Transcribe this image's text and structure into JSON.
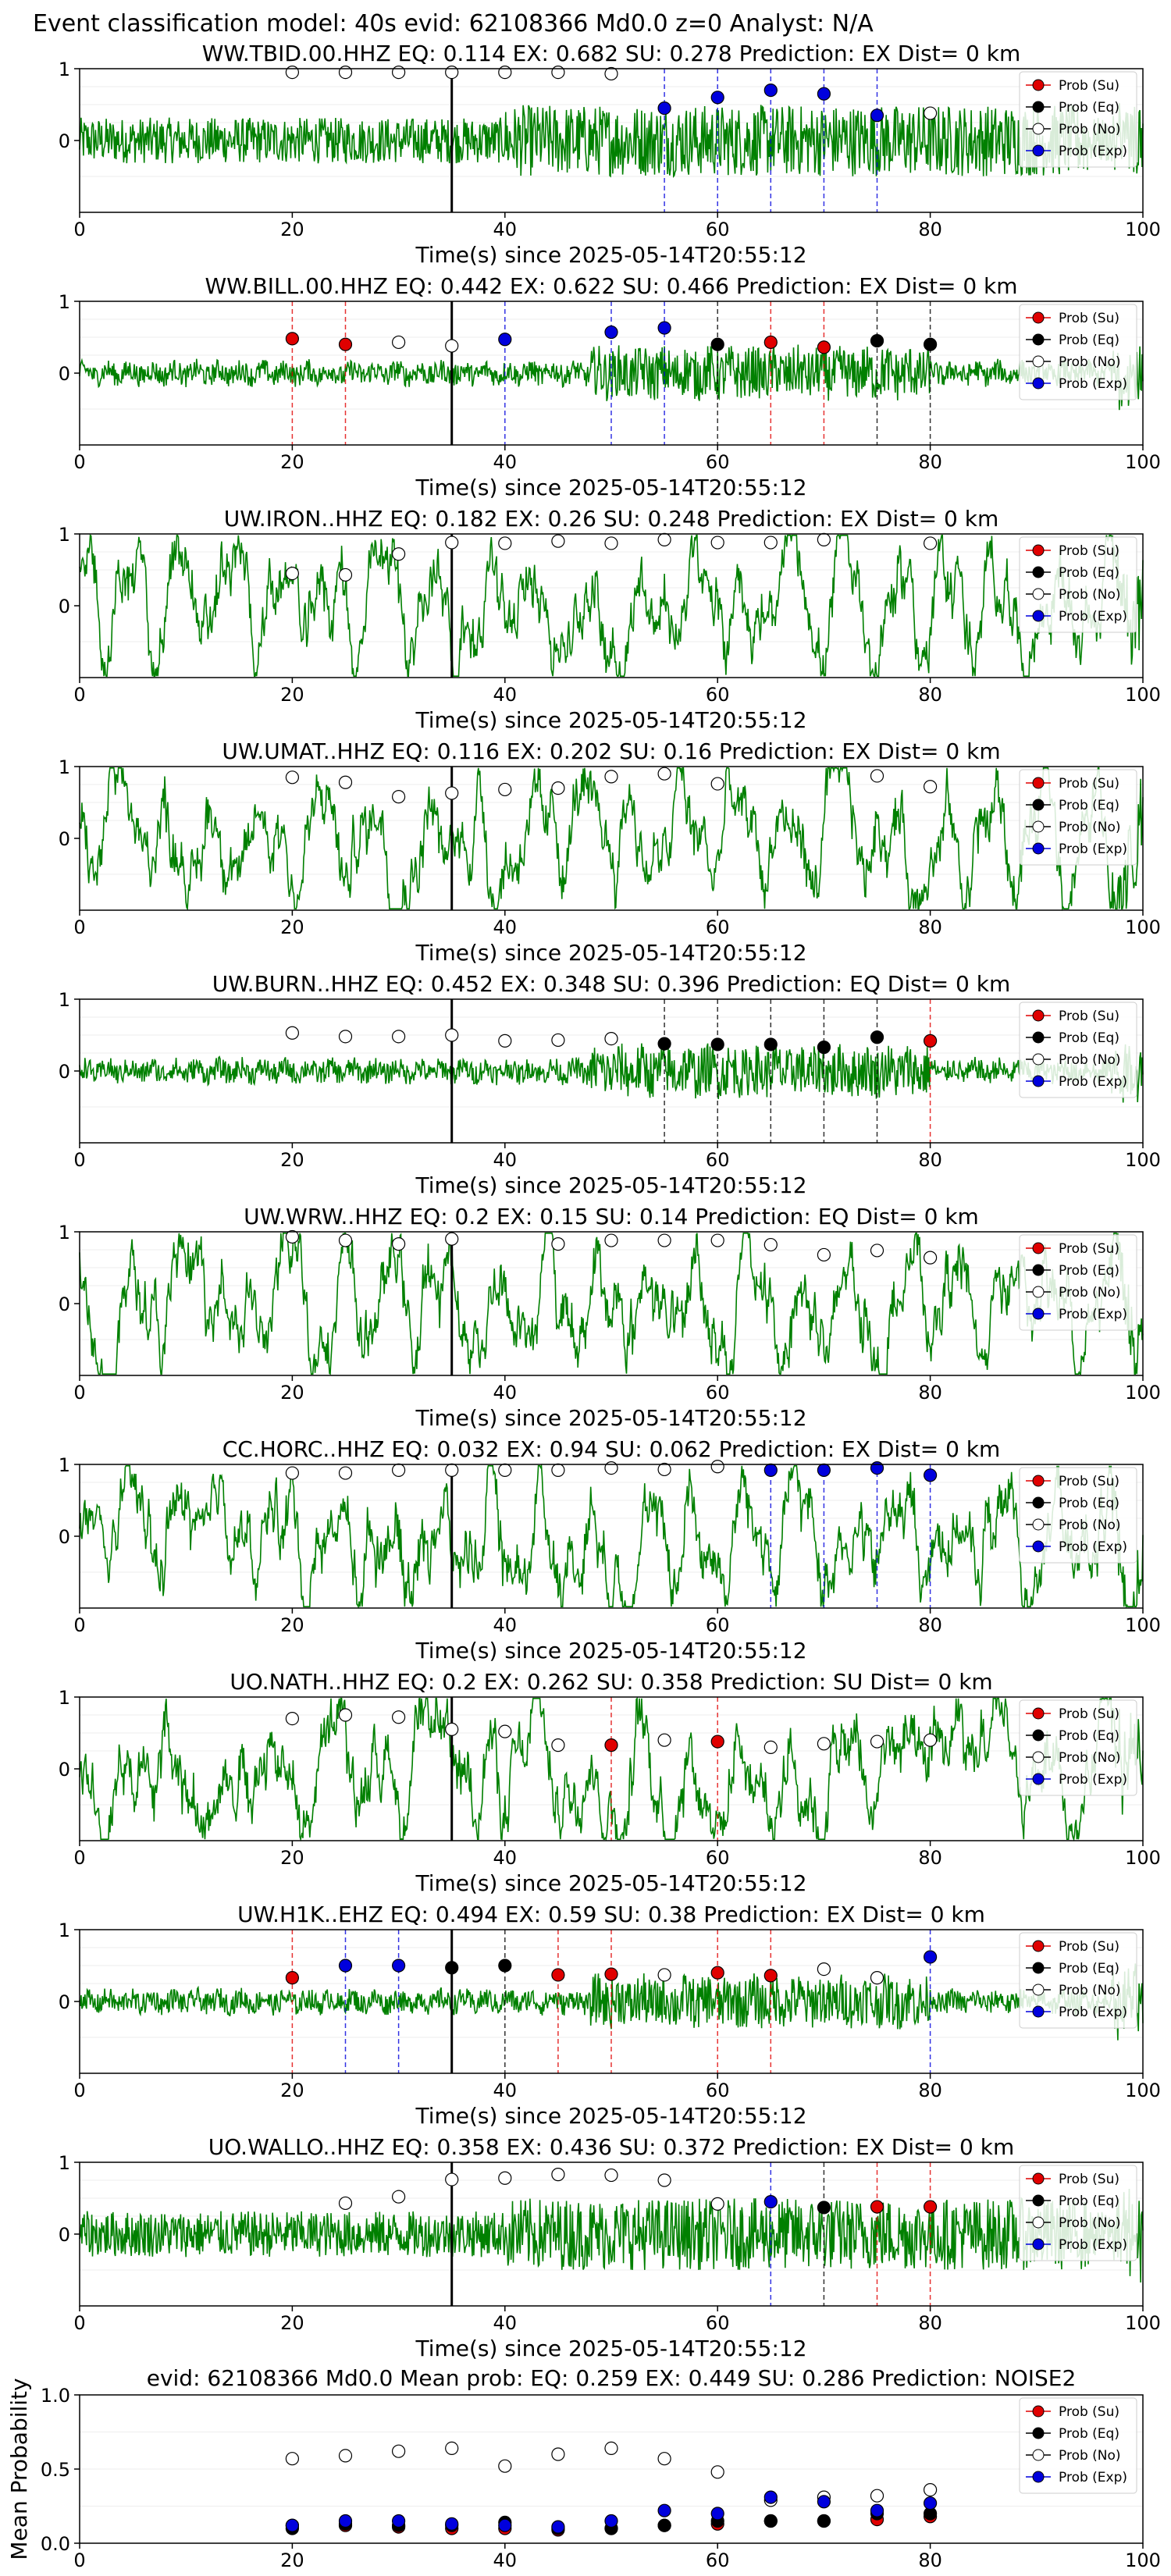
{
  "figure_title": "Event classification model: 40s evid: 62108366 Md0.0 z=0 Analyst: N/A",
  "colors": {
    "trace": "#008000",
    "su": "#e00000",
    "eq": "#000000",
    "no": "#ffffff",
    "exp": "#0000dd",
    "arrival": "#000000"
  },
  "legend_labels": [
    "Prob (Su)",
    "Prob (Eq)",
    "Prob (No)",
    "Prob (Exp)"
  ],
  "chart_data": [
    {
      "type": "scatter",
      "station": "WW.TBID.00.HHZ",
      "title": "WW.TBID.00.HHZ   EQ: 0.114  EX: 0.682  SU: 0.278   Prediction: EX    Dist= 0 km",
      "xlabel": "Time(s) since 2025-05-14T20:55:12",
      "xlim": [
        0,
        100
      ],
      "ylim": [
        -1,
        1
      ],
      "xticks": [
        "0",
        "20",
        "40",
        "60",
        "80",
        "100"
      ],
      "yticks": [
        "1",
        "0"
      ],
      "arrival_time": 35,
      "trace_style": "medium",
      "points": [
        {
          "x": 20,
          "y": 0.95,
          "cls": "no"
        },
        {
          "x": 25,
          "y": 0.95,
          "cls": "no"
        },
        {
          "x": 30,
          "y": 0.95,
          "cls": "no"
        },
        {
          "x": 35,
          "y": 0.95,
          "cls": "no"
        },
        {
          "x": 40,
          "y": 0.95,
          "cls": "no"
        },
        {
          "x": 45,
          "y": 0.95,
          "cls": "no"
        },
        {
          "x": 50,
          "y": 0.93,
          "cls": "no"
        },
        {
          "x": 55,
          "y": 0.45,
          "cls": "exp"
        },
        {
          "x": 60,
          "y": 0.6,
          "cls": "exp"
        },
        {
          "x": 65,
          "y": 0.7,
          "cls": "exp"
        },
        {
          "x": 70,
          "y": 0.65,
          "cls": "exp"
        },
        {
          "x": 75,
          "y": 0.35,
          "cls": "exp"
        },
        {
          "x": 80,
          "y": 0.38,
          "cls": "no"
        }
      ]
    },
    {
      "type": "scatter",
      "station": "WW.BILL.00.HHZ",
      "title": "WW.BILL.00.HHZ   EQ: 0.442  EX: 0.622  SU: 0.466   Prediction: EX    Dist= 0 km",
      "xlabel": "Time(s) since 2025-05-14T20:55:12",
      "xlim": [
        0,
        100
      ],
      "ylim": [
        -1,
        1
      ],
      "xticks": [
        "0",
        "20",
        "40",
        "60",
        "80",
        "100"
      ],
      "yticks": [
        "1",
        "0"
      ],
      "arrival_time": 35,
      "trace_style": "low",
      "points": [
        {
          "x": 20,
          "y": 0.48,
          "cls": "su"
        },
        {
          "x": 25,
          "y": 0.4,
          "cls": "su"
        },
        {
          "x": 30,
          "y": 0.43,
          "cls": "no"
        },
        {
          "x": 35,
          "y": 0.38,
          "cls": "no"
        },
        {
          "x": 40,
          "y": 0.47,
          "cls": "exp"
        },
        {
          "x": 50,
          "y": 0.57,
          "cls": "exp"
        },
        {
          "x": 55,
          "y": 0.63,
          "cls": "exp"
        },
        {
          "x": 60,
          "y": 0.4,
          "cls": "eq"
        },
        {
          "x": 65,
          "y": 0.43,
          "cls": "su"
        },
        {
          "x": 70,
          "y": 0.36,
          "cls": "su"
        },
        {
          "x": 75,
          "y": 0.45,
          "cls": "eq"
        },
        {
          "x": 80,
          "y": 0.4,
          "cls": "eq"
        }
      ]
    },
    {
      "type": "scatter",
      "station": "UW.IRON..HHZ",
      "title": "UW.IRON..HHZ   EQ: 0.182  EX: 0.26  SU: 0.248   Prediction: EX    Dist= 0 km",
      "xlabel": "Time(s) since 2025-05-14T20:55:12",
      "xlim": [
        0,
        100
      ],
      "ylim": [
        -1,
        1
      ],
      "xticks": [
        "0",
        "20",
        "40",
        "60",
        "80",
        "100"
      ],
      "yticks": [
        "1",
        "0"
      ],
      "arrival_time": 35,
      "trace_style": "wavy",
      "points": [
        {
          "x": 20,
          "y": 0.45,
          "cls": "no"
        },
        {
          "x": 25,
          "y": 0.43,
          "cls": "no"
        },
        {
          "x": 30,
          "y": 0.72,
          "cls": "no"
        },
        {
          "x": 35,
          "y": 0.88,
          "cls": "no"
        },
        {
          "x": 40,
          "y": 0.87,
          "cls": "no"
        },
        {
          "x": 45,
          "y": 0.9,
          "cls": "no"
        },
        {
          "x": 50,
          "y": 0.87,
          "cls": "no"
        },
        {
          "x": 55,
          "y": 0.92,
          "cls": "no"
        },
        {
          "x": 60,
          "y": 0.88,
          "cls": "no"
        },
        {
          "x": 65,
          "y": 0.88,
          "cls": "no"
        },
        {
          "x": 70,
          "y": 0.92,
          "cls": "no"
        },
        {
          "x": 80,
          "y": 0.87,
          "cls": "no"
        }
      ]
    },
    {
      "type": "scatter",
      "station": "UW.UMAT..HHZ",
      "title": "UW.UMAT..HHZ   EQ: 0.116  EX: 0.202  SU: 0.16   Prediction: EX    Dist= 0 km",
      "xlabel": "Time(s) since 2025-05-14T20:55:12",
      "xlim": [
        0,
        100
      ],
      "ylim": [
        -1,
        1
      ],
      "xticks": [
        "0",
        "20",
        "40",
        "60",
        "80",
        "100"
      ],
      "yticks": [
        "1",
        "0"
      ],
      "arrival_time": 35,
      "trace_style": "wavy",
      "points": [
        {
          "x": 20,
          "y": 0.85,
          "cls": "no"
        },
        {
          "x": 25,
          "y": 0.78,
          "cls": "no"
        },
        {
          "x": 30,
          "y": 0.58,
          "cls": "no"
        },
        {
          "x": 35,
          "y": 0.63,
          "cls": "no"
        },
        {
          "x": 40,
          "y": 0.68,
          "cls": "no"
        },
        {
          "x": 45,
          "y": 0.7,
          "cls": "no"
        },
        {
          "x": 50,
          "y": 0.86,
          "cls": "no"
        },
        {
          "x": 55,
          "y": 0.9,
          "cls": "no"
        },
        {
          "x": 60,
          "y": 0.76,
          "cls": "no"
        },
        {
          "x": 75,
          "y": 0.87,
          "cls": "no"
        },
        {
          "x": 80,
          "y": 0.72,
          "cls": "no"
        }
      ]
    },
    {
      "type": "scatter",
      "station": "UW.BURN..HHZ",
      "title": "UW.BURN..HHZ   EQ: 0.452  EX: 0.348  SU: 0.396   Prediction: EQ    Dist= 0 km",
      "xlabel": "Time(s) since 2025-05-14T20:55:12",
      "xlim": [
        0,
        100
      ],
      "ylim": [
        -1,
        1
      ],
      "xticks": [
        "0",
        "20",
        "40",
        "60",
        "80",
        "100"
      ],
      "yticks": [
        "1",
        "0"
      ],
      "arrival_time": 35,
      "trace_style": "low",
      "points": [
        {
          "x": 20,
          "y": 0.53,
          "cls": "no"
        },
        {
          "x": 25,
          "y": 0.48,
          "cls": "no"
        },
        {
          "x": 30,
          "y": 0.48,
          "cls": "no"
        },
        {
          "x": 35,
          "y": 0.5,
          "cls": "no"
        },
        {
          "x": 40,
          "y": 0.42,
          "cls": "no"
        },
        {
          "x": 45,
          "y": 0.43,
          "cls": "no"
        },
        {
          "x": 50,
          "y": 0.45,
          "cls": "no"
        },
        {
          "x": 55,
          "y": 0.38,
          "cls": "eq"
        },
        {
          "x": 60,
          "y": 0.37,
          "cls": "eq"
        },
        {
          "x": 65,
          "y": 0.37,
          "cls": "eq"
        },
        {
          "x": 70,
          "y": 0.33,
          "cls": "eq"
        },
        {
          "x": 75,
          "y": 0.47,
          "cls": "eq"
        },
        {
          "x": 80,
          "y": 0.42,
          "cls": "su"
        }
      ]
    },
    {
      "type": "scatter",
      "station": "UW.WRW..HHZ",
      "title": "UW.WRW..HHZ   EQ: 0.2  EX: 0.15  SU: 0.14   Prediction: EQ    Dist= 0 km",
      "xlabel": "Time(s) since 2025-05-14T20:55:12",
      "xlim": [
        0,
        100
      ],
      "ylim": [
        -1,
        1
      ],
      "xticks": [
        "0",
        "20",
        "40",
        "60",
        "80",
        "100"
      ],
      "yticks": [
        "1",
        "0"
      ],
      "arrival_time": 35,
      "trace_style": "wavy",
      "points": [
        {
          "x": 20,
          "y": 0.93,
          "cls": "no"
        },
        {
          "x": 25,
          "y": 0.88,
          "cls": "no"
        },
        {
          "x": 30,
          "y": 0.83,
          "cls": "no"
        },
        {
          "x": 35,
          "y": 0.9,
          "cls": "no"
        },
        {
          "x": 45,
          "y": 0.83,
          "cls": "no"
        },
        {
          "x": 50,
          "y": 0.88,
          "cls": "no"
        },
        {
          "x": 55,
          "y": 0.88,
          "cls": "no"
        },
        {
          "x": 60,
          "y": 0.88,
          "cls": "no"
        },
        {
          "x": 65,
          "y": 0.82,
          "cls": "no"
        },
        {
          "x": 70,
          "y": 0.68,
          "cls": "no"
        },
        {
          "x": 75,
          "y": 0.74,
          "cls": "no"
        },
        {
          "x": 80,
          "y": 0.64,
          "cls": "no"
        }
      ]
    },
    {
      "type": "scatter",
      "station": "CC.HORC..HHZ",
      "title": "CC.HORC..HHZ   EQ: 0.032  EX: 0.94  SU: 0.062   Prediction: EX    Dist= 0 km",
      "xlabel": "Time(s) since 2025-05-14T20:55:12",
      "xlim": [
        0,
        100
      ],
      "ylim": [
        -1,
        1
      ],
      "xticks": [
        "0",
        "20",
        "40",
        "60",
        "80",
        "100"
      ],
      "yticks": [
        "1",
        "0"
      ],
      "arrival_time": 35,
      "trace_style": "wavy",
      "points": [
        {
          "x": 20,
          "y": 0.88,
          "cls": "no"
        },
        {
          "x": 25,
          "y": 0.88,
          "cls": "no"
        },
        {
          "x": 30,
          "y": 0.92,
          "cls": "no"
        },
        {
          "x": 35,
          "y": 0.92,
          "cls": "no"
        },
        {
          "x": 40,
          "y": 0.92,
          "cls": "no"
        },
        {
          "x": 45,
          "y": 0.92,
          "cls": "no"
        },
        {
          "x": 50,
          "y": 0.95,
          "cls": "no"
        },
        {
          "x": 55,
          "y": 0.93,
          "cls": "no"
        },
        {
          "x": 60,
          "y": 0.97,
          "cls": "no"
        },
        {
          "x": 65,
          "y": 0.92,
          "cls": "exp"
        },
        {
          "x": 70,
          "y": 0.92,
          "cls": "exp"
        },
        {
          "x": 75,
          "y": 0.95,
          "cls": "exp"
        },
        {
          "x": 80,
          "y": 0.85,
          "cls": "exp"
        }
      ]
    },
    {
      "type": "scatter",
      "station": "UO.NATH..HHZ",
      "title": "UO.NATH..HHZ   EQ: 0.2  EX: 0.262  SU: 0.358   Prediction: SU    Dist= 0 km",
      "xlabel": "Time(s) since 2025-05-14T20:55:12",
      "xlim": [
        0,
        100
      ],
      "ylim": [
        -1,
        1
      ],
      "xticks": [
        "0",
        "20",
        "40",
        "60",
        "80",
        "100"
      ],
      "yticks": [
        "1",
        "0"
      ],
      "arrival_time": 35,
      "trace_style": "wavy",
      "points": [
        {
          "x": 20,
          "y": 0.7,
          "cls": "no"
        },
        {
          "x": 25,
          "y": 0.75,
          "cls": "no"
        },
        {
          "x": 30,
          "y": 0.72,
          "cls": "no"
        },
        {
          "x": 35,
          "y": 0.55,
          "cls": "no"
        },
        {
          "x": 40,
          "y": 0.52,
          "cls": "no"
        },
        {
          "x": 45,
          "y": 0.33,
          "cls": "no"
        },
        {
          "x": 50,
          "y": 0.33,
          "cls": "su"
        },
        {
          "x": 55,
          "y": 0.4,
          "cls": "no"
        },
        {
          "x": 60,
          "y": 0.38,
          "cls": "su"
        },
        {
          "x": 65,
          "y": 0.3,
          "cls": "no"
        },
        {
          "x": 70,
          "y": 0.35,
          "cls": "no"
        },
        {
          "x": 75,
          "y": 0.38,
          "cls": "no"
        },
        {
          "x": 80,
          "y": 0.4,
          "cls": "no"
        }
      ]
    },
    {
      "type": "scatter",
      "station": "UW.H1K..EHZ",
      "title": "UW.H1K..EHZ   EQ: 0.494  EX: 0.59  SU: 0.38   Prediction: EX    Dist= 0 km",
      "xlabel": "Time(s) since 2025-05-14T20:55:12",
      "xlim": [
        0,
        100
      ],
      "ylim": [
        -1,
        1
      ],
      "xticks": [
        "0",
        "20",
        "40",
        "60",
        "80",
        "100"
      ],
      "yticks": [
        "1",
        "0"
      ],
      "arrival_time": 35,
      "trace_style": "low",
      "points": [
        {
          "x": 20,
          "y": 0.33,
          "cls": "su"
        },
        {
          "x": 25,
          "y": 0.5,
          "cls": "exp"
        },
        {
          "x": 30,
          "y": 0.5,
          "cls": "exp"
        },
        {
          "x": 35,
          "y": 0.47,
          "cls": "eq"
        },
        {
          "x": 40,
          "y": 0.5,
          "cls": "eq"
        },
        {
          "x": 45,
          "y": 0.37,
          "cls": "su"
        },
        {
          "x": 50,
          "y": 0.38,
          "cls": "su"
        },
        {
          "x": 55,
          "y": 0.37,
          "cls": "no"
        },
        {
          "x": 60,
          "y": 0.4,
          "cls": "su"
        },
        {
          "x": 65,
          "y": 0.36,
          "cls": "su"
        },
        {
          "x": 70,
          "y": 0.45,
          "cls": "no"
        },
        {
          "x": 75,
          "y": 0.33,
          "cls": "no"
        },
        {
          "x": 80,
          "y": 0.62,
          "cls": "exp"
        }
      ]
    },
    {
      "type": "scatter",
      "station": "UO.WALLO..HHZ",
      "title": "UO.WALLO..HHZ   EQ: 0.358  EX: 0.436  SU: 0.372   Prediction: EX    Dist= 0 km",
      "xlabel": "Time(s) since 2025-05-14T20:55:12",
      "xlim": [
        0,
        100
      ],
      "ylim": [
        -1,
        1
      ],
      "xticks": [
        "0",
        "20",
        "40",
        "60",
        "80",
        "100"
      ],
      "yticks": [
        "1",
        "0"
      ],
      "arrival_time": 35,
      "trace_style": "medium",
      "points": [
        {
          "x": 25,
          "y": 0.43,
          "cls": "no"
        },
        {
          "x": 30,
          "y": 0.52,
          "cls": "no"
        },
        {
          "x": 35,
          "y": 0.76,
          "cls": "no"
        },
        {
          "x": 40,
          "y": 0.78,
          "cls": "no"
        },
        {
          "x": 45,
          "y": 0.83,
          "cls": "no"
        },
        {
          "x": 50,
          "y": 0.82,
          "cls": "no"
        },
        {
          "x": 55,
          "y": 0.75,
          "cls": "no"
        },
        {
          "x": 60,
          "y": 0.42,
          "cls": "no"
        },
        {
          "x": 65,
          "y": 0.45,
          "cls": "exp"
        },
        {
          "x": 70,
          "y": 0.37,
          "cls": "eq"
        },
        {
          "x": 75,
          "y": 0.38,
          "cls": "su"
        },
        {
          "x": 80,
          "y": 0.38,
          "cls": "su"
        }
      ]
    },
    {
      "type": "scatter",
      "title": "evid: 62108366  Md0.0   Mean prob:   EQ: 0.259  EX: 0.449  SU: 0.286   Prediction: NOISE2",
      "xlabel": "",
      "ylabel": "Mean Probability",
      "xlim": [
        0,
        100
      ],
      "ylim": [
        0,
        1
      ],
      "xticks": [
        "0",
        "20",
        "40",
        "60",
        "80",
        "100"
      ],
      "yticks": [
        "0.0",
        "0.5",
        "1.0"
      ],
      "series": [
        {
          "name": "Prob (Su)",
          "cls": "su",
          "x": [
            20,
            25,
            30,
            35,
            40,
            45,
            50,
            55,
            60,
            65,
            70,
            75,
            80
          ],
          "y": [
            0.12,
            0.12,
            0.11,
            0.1,
            0.1,
            0.09,
            0.1,
            0.12,
            0.13,
            0.15,
            0.15,
            0.16,
            0.18
          ]
        },
        {
          "name": "Prob (Eq)",
          "cls": "eq",
          "x": [
            20,
            25,
            30,
            35,
            40,
            45,
            50,
            55,
            60,
            65,
            70,
            75,
            80
          ],
          "y": [
            0.1,
            0.13,
            0.12,
            0.12,
            0.14,
            0.1,
            0.1,
            0.12,
            0.15,
            0.15,
            0.15,
            0.2,
            0.2
          ]
        },
        {
          "name": "Prob (No)",
          "cls": "no",
          "x": [
            20,
            25,
            30,
            35,
            40,
            45,
            50,
            55,
            60,
            65,
            70,
            75,
            80
          ],
          "y": [
            0.57,
            0.59,
            0.62,
            0.64,
            0.52,
            0.6,
            0.64,
            0.57,
            0.48,
            0.29,
            0.31,
            0.32,
            0.36
          ]
        },
        {
          "name": "Prob (Exp)",
          "cls": "exp",
          "x": [
            20,
            25,
            30,
            35,
            40,
            45,
            50,
            55,
            60,
            65,
            70,
            75,
            80
          ],
          "y": [
            0.12,
            0.15,
            0.15,
            0.13,
            0.12,
            0.11,
            0.15,
            0.22,
            0.2,
            0.31,
            0.28,
            0.22,
            0.27
          ]
        }
      ]
    }
  ]
}
